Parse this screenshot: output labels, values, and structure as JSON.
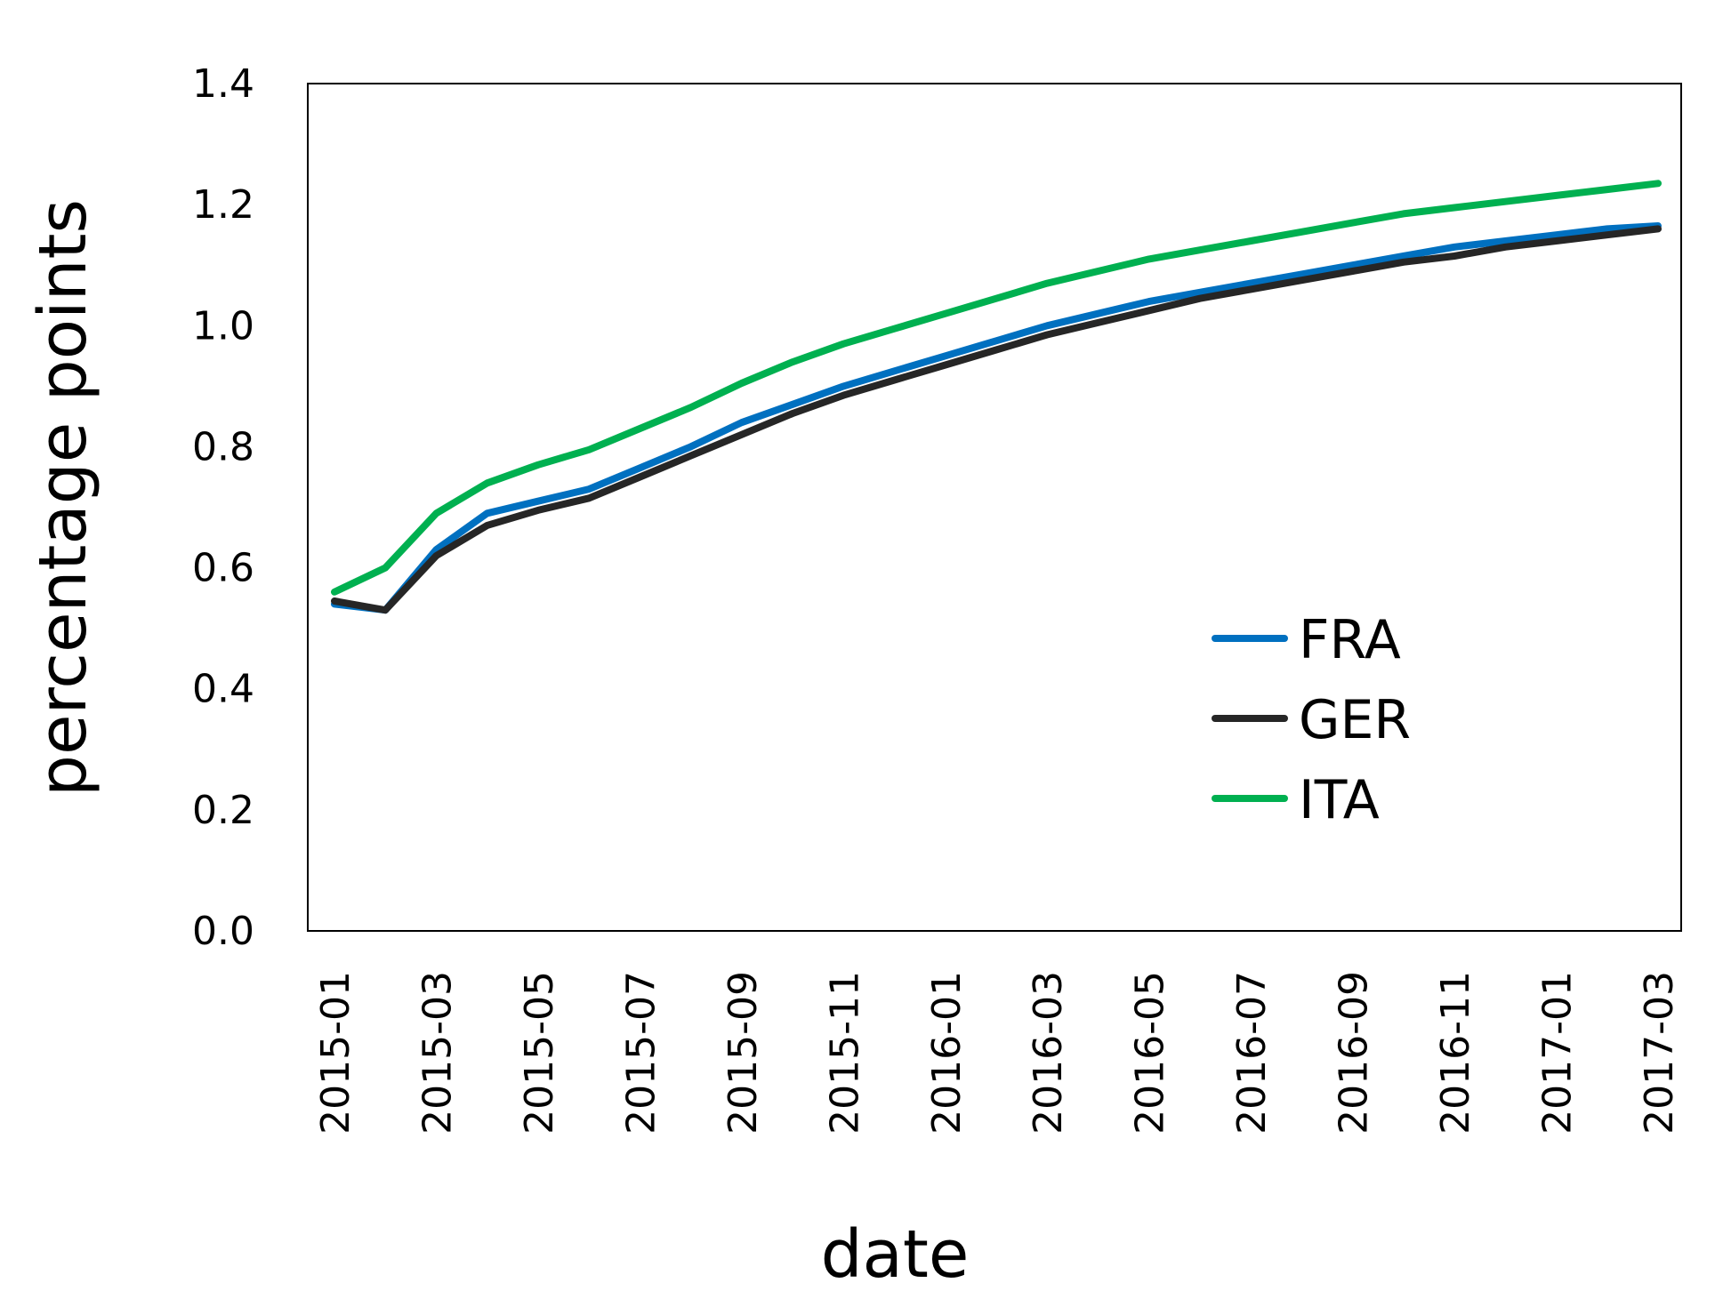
{
  "chart_data": {
    "type": "line",
    "title": "",
    "xlabel": "date",
    "ylabel": "percentage points",
    "ylim": [
      0.0,
      1.4
    ],
    "yticks": [
      "0.0",
      "0.2",
      "0.4",
      "0.6",
      "0.8",
      "1.0",
      "1.2",
      "1.4"
    ],
    "x": [
      "2015-01",
      "2015-02",
      "2015-03",
      "2015-04",
      "2015-05",
      "2015-06",
      "2015-07",
      "2015-08",
      "2015-09",
      "2015-10",
      "2015-11",
      "2015-12",
      "2016-01",
      "2016-02",
      "2016-03",
      "2016-04",
      "2016-05",
      "2016-06",
      "2016-07",
      "2016-08",
      "2016-09",
      "2016-10",
      "2016-11",
      "2016-12",
      "2017-01",
      "2017-02",
      "2017-03"
    ],
    "xtick_labels": [
      "2015-01",
      "2015-03",
      "2015-05",
      "2015-07",
      "2015-09",
      "2015-11",
      "2016-01",
      "2016-03",
      "2016-05",
      "2016-07",
      "2016-09",
      "2016-11",
      "2017-01",
      "2017-03"
    ],
    "legend_position": "lower-right",
    "grid": false,
    "series": [
      {
        "name": "FRA",
        "color": "#0070C0",
        "values": [
          0.54,
          0.53,
          0.63,
          0.69,
          0.71,
          0.73,
          0.765,
          0.8,
          0.84,
          0.87,
          0.9,
          0.925,
          0.95,
          0.975,
          1.0,
          1.02,
          1.04,
          1.055,
          1.07,
          1.085,
          1.1,
          1.115,
          1.13,
          1.14,
          1.15,
          1.16,
          1.165
        ]
      },
      {
        "name": "GER",
        "color": "#262626",
        "values": [
          0.545,
          0.53,
          0.62,
          0.67,
          0.695,
          0.715,
          0.75,
          0.785,
          0.82,
          0.855,
          0.885,
          0.91,
          0.935,
          0.96,
          0.985,
          1.005,
          1.025,
          1.045,
          1.06,
          1.075,
          1.09,
          1.105,
          1.115,
          1.13,
          1.14,
          1.15,
          1.16
        ]
      },
      {
        "name": "ITA",
        "color": "#00B050",
        "values": [
          0.56,
          0.6,
          0.69,
          0.74,
          0.77,
          0.795,
          0.83,
          0.865,
          0.905,
          0.94,
          0.97,
          0.995,
          1.02,
          1.045,
          1.07,
          1.09,
          1.11,
          1.125,
          1.14,
          1.155,
          1.17,
          1.185,
          1.195,
          1.205,
          1.215,
          1.225,
          1.235
        ]
      }
    ]
  }
}
